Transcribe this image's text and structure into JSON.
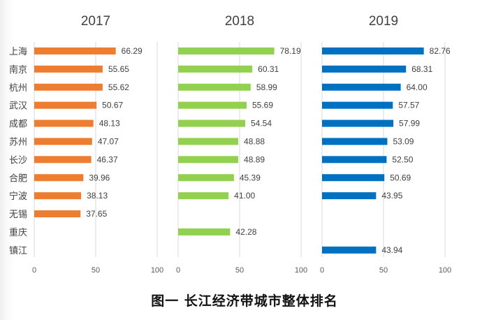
{
  "caption": "图一 长江经济带城市整体排名",
  "chart_data": {
    "type": "bar",
    "orientation": "horizontal",
    "title": "图一 长江经济带城市整体排名",
    "categories": [
      "上海",
      "南京",
      "杭州",
      "武汉",
      "成都",
      "苏州",
      "长沙",
      "合肥",
      "宁波",
      "无锡",
      "重庆",
      "镇江"
    ],
    "xlim": [
      0,
      100
    ],
    "xticks": [
      0,
      50,
      100
    ],
    "panels": [
      {
        "name": "2017",
        "color": "#ED7D31",
        "values": [
          66.29,
          55.65,
          55.62,
          50.67,
          48.13,
          47.07,
          46.37,
          39.96,
          38.13,
          37.65,
          null,
          null
        ],
        "labels": [
          "66.29",
          "55.65",
          "55.62",
          "50.67",
          "48.13",
          "47.07",
          "46.37",
          "39.96",
          "38.13",
          "37.65",
          null,
          null
        ]
      },
      {
        "name": "2018",
        "color": "#92D050",
        "values": [
          78.19,
          60.31,
          58.99,
          55.69,
          54.54,
          48.88,
          48.89,
          45.39,
          41.0,
          null,
          42.28,
          null
        ],
        "labels": [
          "78.19",
          "60.31",
          "58.99",
          "55.69",
          "54.54",
          "48.88",
          "48.89",
          "45.39",
          "41.00",
          null,
          "42.28",
          null
        ]
      },
      {
        "name": "2019",
        "color": "#0070C0",
        "values": [
          82.76,
          68.31,
          64.0,
          57.57,
          57.99,
          53.09,
          52.5,
          50.69,
          43.95,
          null,
          null,
          43.94
        ],
        "labels": [
          "82.76",
          "68.31",
          "64.00",
          "57.57",
          "57.99",
          "53.09",
          "52.50",
          "50.69",
          "43.95",
          null,
          null,
          "43.94"
        ]
      }
    ]
  }
}
